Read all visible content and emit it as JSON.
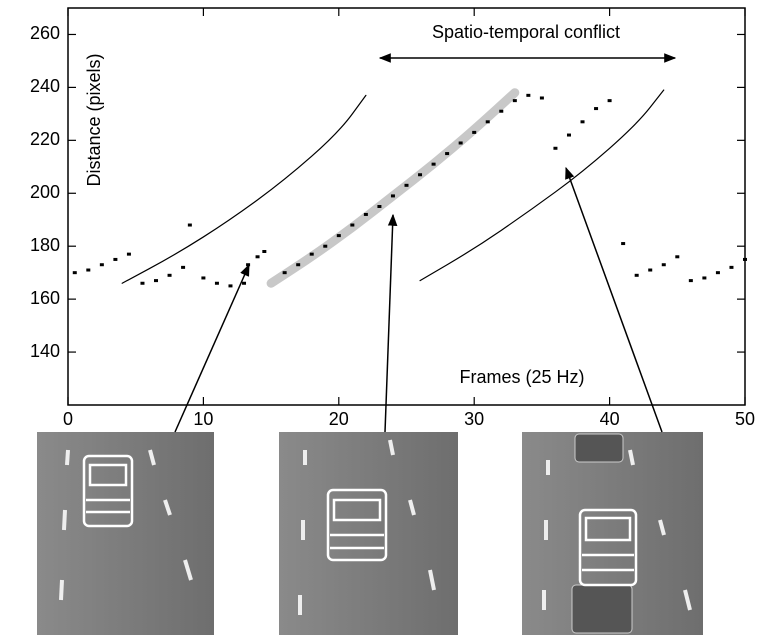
{
  "chart_data": {
    "type": "scatter",
    "x_label": "Frames (25 Hz)",
    "y_label": "Distance (pixels)",
    "annotation": "Spatio-temporal conflict",
    "xlim": [
      0,
      50
    ],
    "ylim": [
      120,
      270
    ],
    "xticks": [
      0,
      10,
      20,
      30,
      40,
      50
    ],
    "yticks": [
      140,
      160,
      180,
      200,
      220,
      240,
      260
    ],
    "series": [
      {
        "style": "line",
        "color": "#c8c8c8",
        "line_width": 9,
        "x": [
          15,
          18,
          21,
          24,
          27,
          30,
          33
        ],
        "values": [
          166,
          176,
          187,
          199,
          211,
          224,
          238
        ]
      },
      {
        "style": "line",
        "color": "#000000",
        "line_width": 1.2,
        "x": [
          4,
          8,
          12,
          16,
          20,
          22
        ],
        "values": [
          166,
          177,
          190,
          205,
          223,
          237
        ]
      },
      {
        "style": "line",
        "color": "#000000",
        "line_width": 1.2,
        "x": [
          26,
          30,
          34,
          38,
          42,
          44
        ],
        "values": [
          167,
          179,
          193,
          208,
          226,
          239
        ]
      },
      {
        "style": "markers",
        "color": "#000000",
        "x": [
          0.5,
          1.5,
          2.5,
          3.5,
          4.5,
          5.5,
          6.5,
          7.5,
          8.5,
          9,
          10,
          11,
          12,
          13,
          13.3,
          14,
          14.5,
          16,
          17,
          18,
          19,
          20,
          21,
          22,
          23,
          24,
          25,
          26,
          27,
          28,
          29,
          30,
          31,
          32,
          33,
          34,
          35,
          36,
          37,
          38,
          39,
          40,
          41,
          42,
          43,
          44,
          45,
          46,
          47,
          48,
          49,
          50
        ],
        "values": [
          170,
          171,
          173,
          175,
          177,
          166,
          167,
          169,
          172,
          188,
          168,
          166,
          165,
          166,
          173,
          176,
          178,
          170,
          173,
          177,
          180,
          184,
          188,
          192,
          195,
          199,
          203,
          207,
          211,
          215,
          219,
          223,
          227,
          231,
          235,
          237,
          236,
          217,
          222,
          227,
          232,
          235,
          181,
          169,
          171,
          173,
          176,
          167,
          168,
          170,
          172,
          175
        ]
      }
    ]
  }
}
